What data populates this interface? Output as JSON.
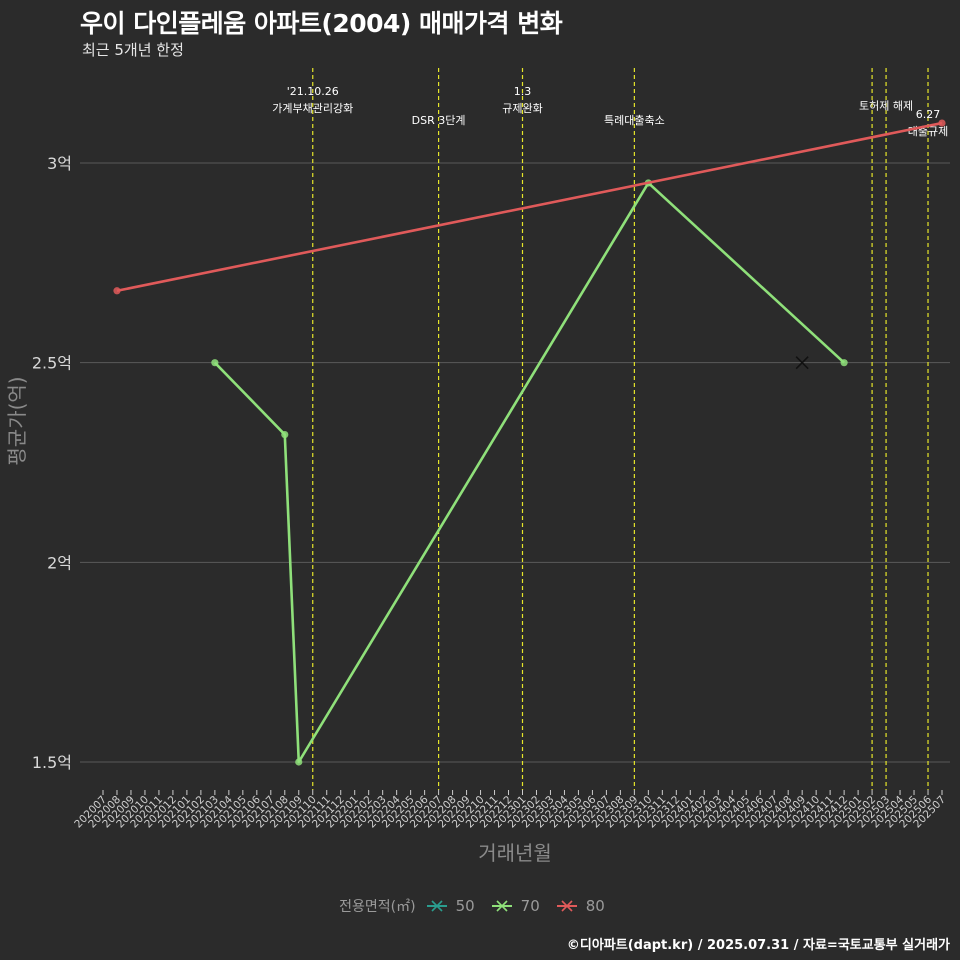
{
  "header": {
    "title": "우이 다인플레움 아파트(2004) 매매가격 변화",
    "subtitle": "최근 5개년 한정"
  },
  "caption": "©디아파트(dapt.kr) / 2025.07.31 / 자료=국토교통부 실거래가",
  "chart_data": {
    "type": "line",
    "title": "우이 다인플레움 아파트(2004) 매매가격 변화",
    "subtitle": "최근 5개년 한정",
    "xlabel": "거래년월",
    "ylabel": "평균가(억)",
    "ylim": [
      1.42,
      3.32
    ],
    "yticks": [
      {
        "value": 1.5,
        "label": "1.5억"
      },
      {
        "value": 2.0,
        "label": "2억"
      },
      {
        "value": 2.5,
        "label": "2.5억"
      },
      {
        "value": 3.0,
        "label": "3억"
      }
    ],
    "categories": [
      "202007",
      "202008",
      "202009",
      "202010",
      "202011",
      "202012",
      "202101",
      "202102",
      "202103",
      "202104",
      "202105",
      "202106",
      "202107",
      "202108",
      "202109",
      "202110",
      "202111",
      "202112",
      "202201",
      "202202",
      "202203",
      "202204",
      "202205",
      "202206",
      "202207",
      "202208",
      "202209",
      "202210",
      "202211",
      "202212",
      "202301",
      "202302",
      "202303",
      "202304",
      "202305",
      "202306",
      "202307",
      "202308",
      "202309",
      "202310",
      "202311",
      "202312",
      "202401",
      "202402",
      "202403",
      "202404",
      "202405",
      "202406",
      "202407",
      "202408",
      "202409",
      "202410",
      "202411",
      "202412",
      "202501",
      "202502",
      "202503",
      "202504",
      "202505",
      "202506",
      "202507"
    ],
    "legend_title": "전용면적(㎡)",
    "series": [
      {
        "name": "50",
        "color": "#2a9d8f",
        "points": []
      },
      {
        "name": "70",
        "color": "#8fe07a",
        "points": [
          {
            "x": "202103",
            "y": 2.5
          },
          {
            "x": "202108",
            "y": 2.32
          },
          {
            "x": "202109",
            "y": 1.5
          },
          {
            "x": "202310",
            "y": 2.95
          },
          {
            "x": "202412",
            "y": 2.5
          }
        ],
        "cross_points": [
          {
            "x": "202409",
            "y": 2.5
          }
        ]
      },
      {
        "name": "80",
        "color": "#e05a5a",
        "points": [
          {
            "x": "202008",
            "y": 2.68
          },
          {
            "x": "202507",
            "y": 3.1
          }
        ]
      }
    ],
    "annotations": [
      {
        "x": "202110",
        "lines": [
          "'21.10.26",
          "가계부채관리강화"
        ],
        "level": 0
      },
      {
        "x": "202207",
        "lines": [
          "DSR 3단계"
        ],
        "level": 2
      },
      {
        "x": "202301",
        "lines": [
          "1.3",
          "규제완화"
        ],
        "level": 0
      },
      {
        "x": "202309",
        "lines": [
          "특례대출축소"
        ],
        "level": 2
      },
      {
        "x": "202502",
        "lines": [],
        "level": 0
      },
      {
        "x": "202503",
        "lines": [
          "토허제 해제"
        ],
        "level": 1
      },
      {
        "x": "202506",
        "lines": [
          "6.27",
          "대출규제"
        ],
        "level": 1.6
      }
    ]
  }
}
